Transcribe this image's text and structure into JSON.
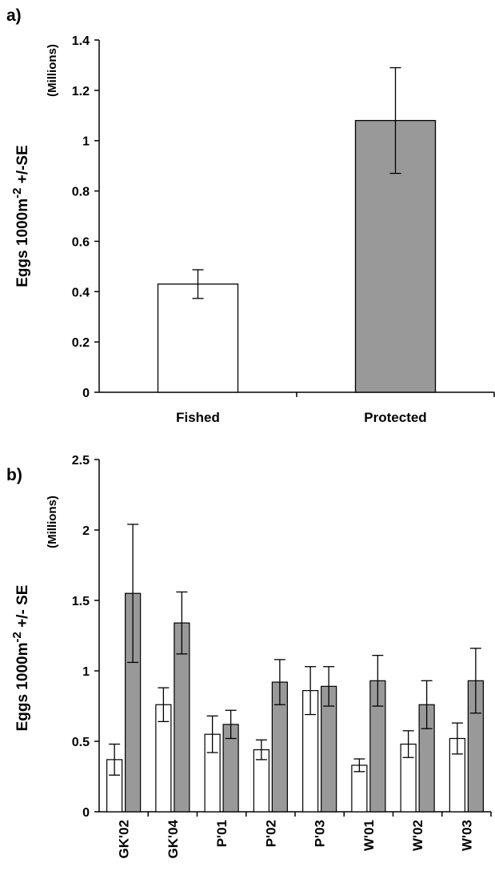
{
  "chart_data": [
    {
      "panel": "a)",
      "type": "bar",
      "categories": [
        "Fished",
        "Protected"
      ],
      "values": [
        0.43,
        1.08
      ],
      "errors": [
        0.057,
        0.21
      ],
      "colors": [
        "#ffffff",
        "#999999"
      ],
      "ylabel": "Eggs 1000m",
      "ylabel_sup": "-2",
      "ylabel_tail": " +/-SE",
      "ylabel_unit": "(Millions)",
      "ylim": [
        0,
        1.4
      ],
      "yticks": [
        "0",
        "0.2",
        "0.4",
        "0.6",
        "0.8",
        "1",
        "1.2",
        "1.4"
      ],
      "ytick_values": [
        0,
        0.2,
        0.4,
        0.6,
        0.8,
        1,
        1.2,
        1.4
      ],
      "grid": false
    },
    {
      "panel": "b)",
      "type": "bar",
      "categories": [
        "GK'02",
        "GK'04",
        "P'01",
        "P'02",
        "P'03",
        "W'01",
        "W'02",
        "W'03"
      ],
      "series": [
        {
          "color": "#ffffff",
          "values": [
            0.37,
            0.76,
            0.55,
            0.44,
            0.86,
            0.33,
            0.48,
            0.52
          ],
          "errors": [
            0.11,
            0.12,
            0.13,
            0.07,
            0.17,
            0.045,
            0.095,
            0.11
          ]
        },
        {
          "color": "#999999",
          "values": [
            1.55,
            1.34,
            0.62,
            0.92,
            0.89,
            0.93,
            0.76,
            0.93
          ],
          "errors": [
            0.49,
            0.22,
            0.1,
            0.16,
            0.14,
            0.18,
            0.17,
            0.23
          ]
        }
      ],
      "ylabel": "Eggs 1000m",
      "ylabel_sup": "-2",
      "ylabel_tail": " +/- SE",
      "ylabel_unit": "(Millions)",
      "ylim": [
        0,
        2.5
      ],
      "yticks": [
        "0",
        "0.5",
        "1",
        "1.5",
        "2",
        "2.5"
      ],
      "ytick_values": [
        0,
        0.5,
        1,
        1.5,
        2,
        2.5
      ],
      "grid": false
    }
  ]
}
